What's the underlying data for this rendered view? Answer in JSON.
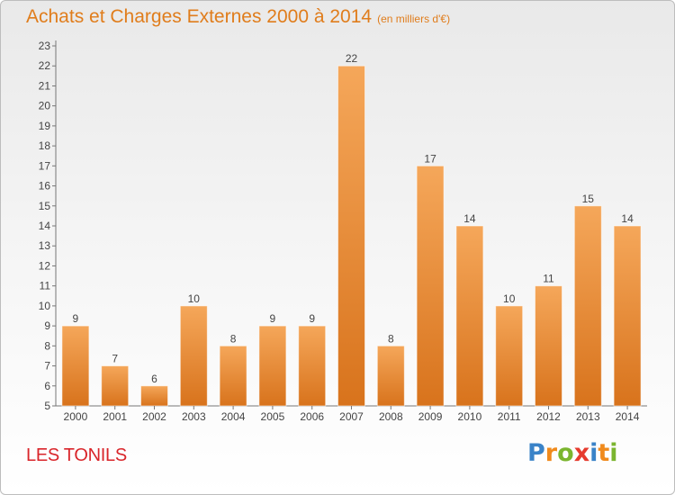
{
  "title": "Achats et Charges Externes 2000 à 2014",
  "subtitle": "(en milliers d'€)",
  "commune": "LES TONILS",
  "logo": {
    "letters": [
      "P",
      "r",
      "o",
      "x",
      "i",
      "t",
      "i"
    ],
    "colors": [
      "#3a83c8",
      "#f08a1c",
      "#7bb52f",
      "#e63b2e",
      "#3a83c8",
      "#f08a1c",
      "#7bb52f"
    ]
  },
  "colors": {
    "title": "#e07d1c",
    "commune": "#d9252a",
    "bar_light": "#f5a75a",
    "bar_dark": "#d8731c"
  },
  "chart_data": {
    "type": "bar",
    "categories": [
      "2000",
      "2001",
      "2002",
      "2003",
      "2004",
      "2005",
      "2006",
      "2007",
      "2008",
      "2009",
      "2010",
      "2011",
      "2012",
      "2013",
      "2014"
    ],
    "values": [
      9,
      7,
      6,
      10,
      8,
      9,
      9,
      22,
      8,
      17,
      14,
      10,
      11,
      15,
      14
    ],
    "ylim": [
      5,
      23
    ],
    "yticks": [
      5,
      6,
      7,
      8,
      9,
      10,
      11,
      12,
      13,
      14,
      15,
      16,
      17,
      18,
      19,
      20,
      21,
      22,
      23
    ],
    "grid": false
  }
}
